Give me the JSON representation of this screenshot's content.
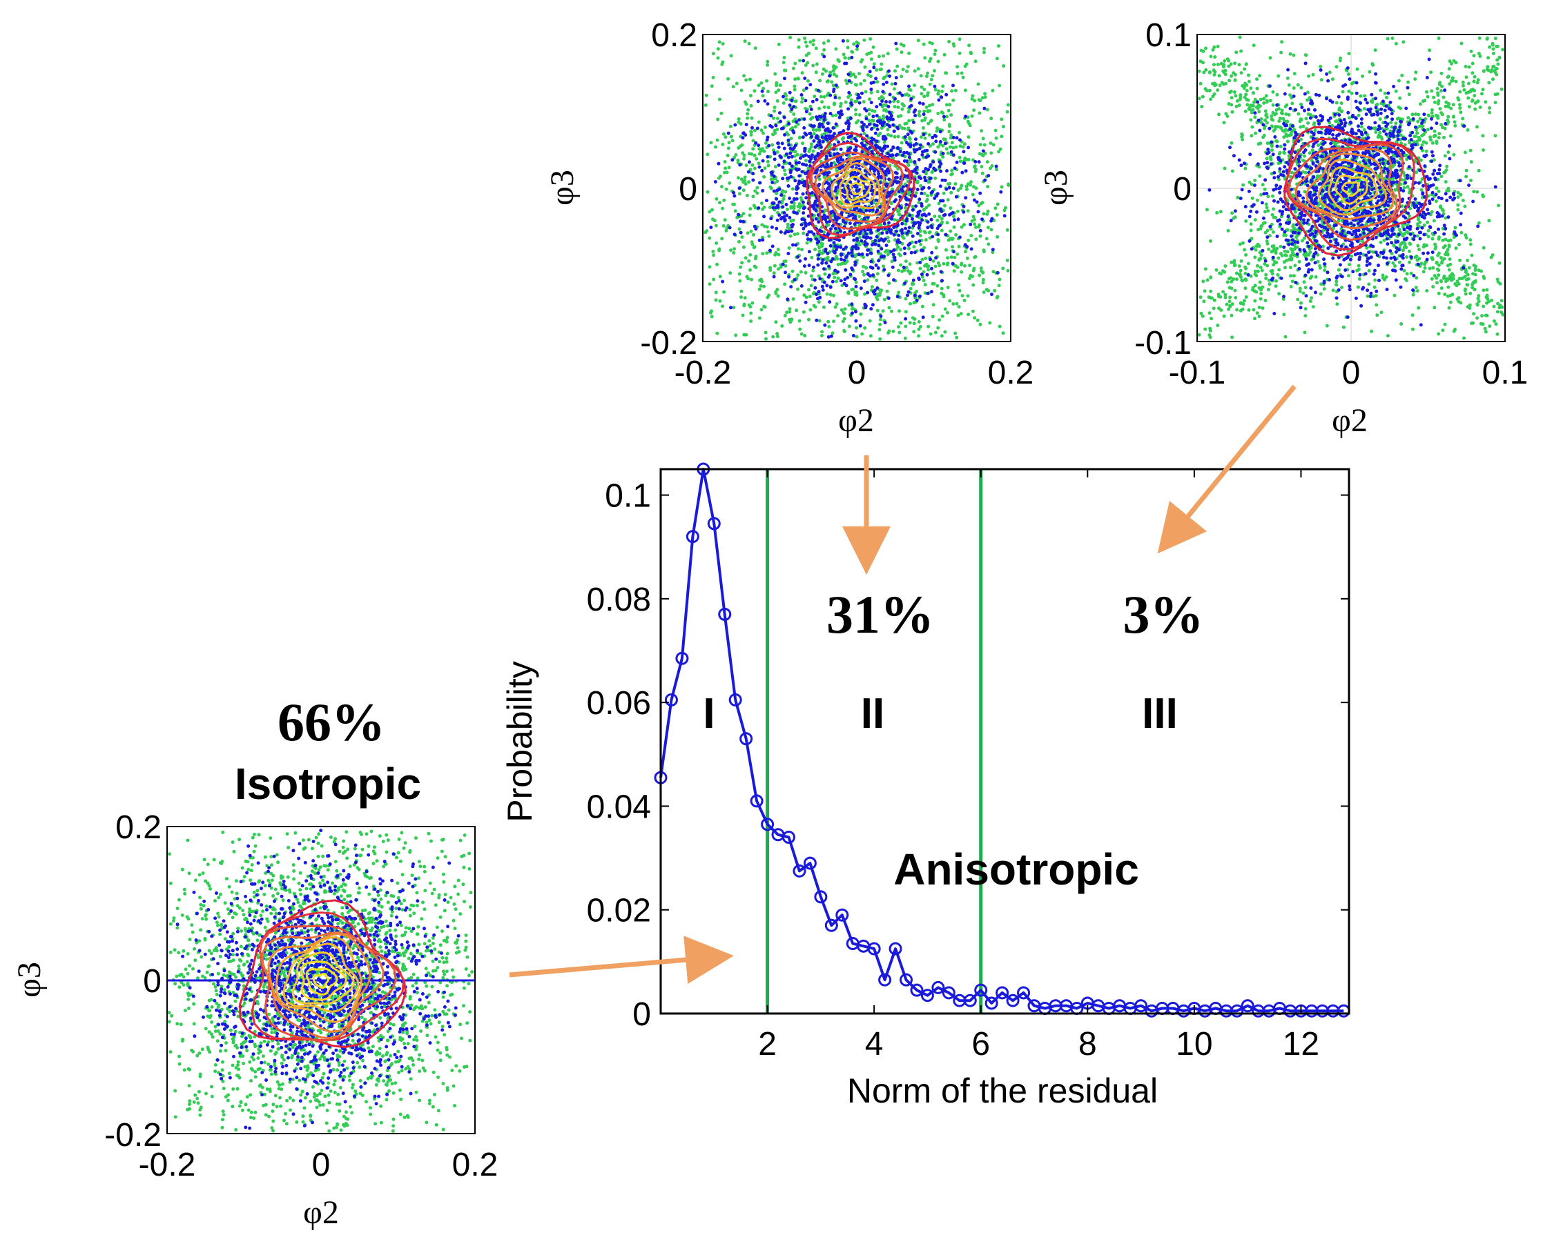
{
  "chart_data": {
    "main": {
      "type": "line",
      "xlabel": "Norm of the residual",
      "ylabel": "Probability",
      "xlim": [
        0,
        12.9
      ],
      "ylim": [
        0,
        0.105
      ],
      "xticks": [
        "2",
        "4",
        "6",
        "8",
        "10",
        "12"
      ],
      "yticks": [
        "0",
        "0.02",
        "0.04",
        "0.06",
        "0.08",
        "0.1"
      ],
      "thresholds": [
        2,
        6
      ],
      "series": [
        {
          "name": "Probability",
          "x": [
            0,
            0.2,
            0.4,
            0.6,
            0.8,
            1.0,
            1.2,
            1.4,
            1.6,
            1.8,
            2.0,
            2.2,
            2.4,
            2.6,
            2.8,
            3.0,
            3.2,
            3.4,
            3.6,
            3.8,
            4.0,
            4.2,
            4.4,
            4.6,
            4.8,
            5.0,
            5.2,
            5.4,
            5.6,
            5.8,
            6.0,
            6.2,
            6.4,
            6.6,
            6.8,
            7.0,
            7.2,
            7.4,
            7.6,
            7.8,
            8.0,
            8.2,
            8.4,
            8.6,
            8.8,
            9.0,
            9.2,
            9.4,
            9.6,
            9.8,
            10.0,
            10.2,
            10.4,
            10.6,
            10.8,
            11.0,
            11.2,
            11.4,
            11.6,
            11.8,
            12.0,
            12.2,
            12.4,
            12.6,
            12.8
          ],
          "y": [
            0.0455,
            0.0605,
            0.0685,
            0.092,
            0.105,
            0.0945,
            0.077,
            0.0605,
            0.053,
            0.041,
            0.0365,
            0.0345,
            0.034,
            0.0275,
            0.029,
            0.0225,
            0.017,
            0.019,
            0.0135,
            0.013,
            0.0125,
            0.0065,
            0.0125,
            0.0065,
            0.0045,
            0.0035,
            0.005,
            0.004,
            0.0025,
            0.0025,
            0.0045,
            0.002,
            0.004,
            0.0025,
            0.004,
            0.0015,
            0.001,
            0.0015,
            0.0015,
            0.001,
            0.002,
            0.0015,
            0.001,
            0.0015,
            0.001,
            0.0015,
            0.0005,
            0.001,
            0.001,
            0.0005,
            0.001,
            0.0005,
            0.001,
            0.0005,
            0.0005,
            0.0015,
            0.0005,
            0.0005,
            0.001,
            0.0005,
            0.0005,
            0.0005,
            0.0005,
            0.0005,
            0.0005
          ]
        }
      ],
      "annotations": {
        "region_labels": [
          "I",
          "II",
          "III"
        ],
        "pct_region_II": "31%",
        "pct_region_III": "3%",
        "anisotropic_label": "Anisotropic"
      }
    },
    "insets": [
      {
        "id": "region-I",
        "type": "scatter",
        "pct_label": "66%",
        "class_label": "Isotropic",
        "xlim": [
          -0.2,
          0.2
        ],
        "ylim": [
          -0.2,
          0.2
        ],
        "xticks": [
          "-0.2",
          "0",
          "0.2"
        ],
        "yticks": [
          "-0.2",
          "0",
          "0.2"
        ],
        "xlabel": "φ2",
        "ylabel": "φ3"
      },
      {
        "id": "region-II",
        "type": "scatter",
        "xlim": [
          -0.2,
          0.2
        ],
        "ylim": [
          -0.2,
          0.2
        ],
        "xticks": [
          "-0.2",
          "0",
          "0.2"
        ],
        "yticks": [
          "-0.2",
          "0",
          "0.2"
        ],
        "xlabel": "φ2",
        "ylabel": "φ3"
      },
      {
        "id": "region-III",
        "type": "scatter",
        "xlim": [
          -0.1,
          0.1
        ],
        "ylim": [
          -0.1,
          0.1
        ],
        "xticks": [
          "-0.1",
          "0",
          "0.1"
        ],
        "yticks": [
          "-0.1",
          "0",
          "0.1"
        ],
        "xlabel": "φ2",
        "ylabel": "φ3"
      }
    ]
  },
  "colors": {
    "series": "#1a1adb",
    "threshold": "#1faa4f",
    "arrow": "#f0a060",
    "scatter_outer": "#33cc55",
    "scatter_inner": "#1a1ae0",
    "contour_outer": "#e0203a",
    "contour_inner": "#f5d020"
  }
}
